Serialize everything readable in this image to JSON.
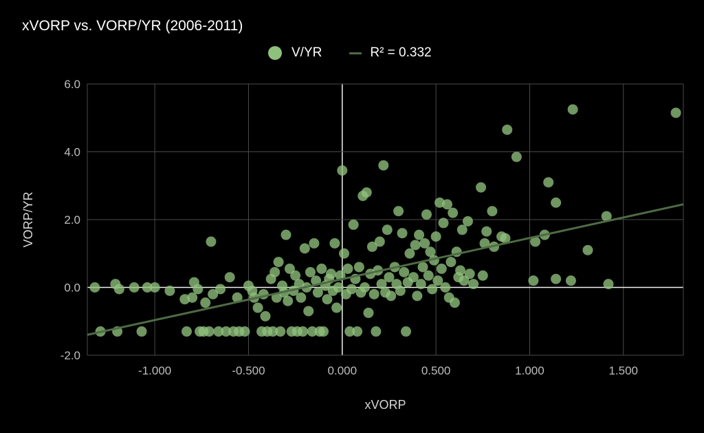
{
  "chart_data": {
    "type": "scatter",
    "title": "xVORP vs. VORP/YR (2006-2011)",
    "xlabel": "xVORP",
    "ylabel": "VORP/YR",
    "xlim": [
      -1.36,
      1.82
    ],
    "ylim": [
      -2.0,
      6.0
    ],
    "x_ticks": [
      -1.0,
      -0.5,
      0.0,
      0.5,
      1.0,
      1.5
    ],
    "x_tick_labels": [
      "-1.000",
      "-0.500",
      "0.000",
      "0.500",
      "1.000",
      "1.500"
    ],
    "y_ticks": [
      -2.0,
      0.0,
      2.0,
      4.0,
      6.0
    ],
    "y_tick_labels": [
      "-2.0",
      "0.0",
      "2.0",
      "4.0",
      "6.0"
    ],
    "grid": true,
    "legend_position": "top",
    "series": [
      {
        "name": "V/YR",
        "color": "#8fc07c",
        "points": [
          [
            -1.32,
            0.0
          ],
          [
            -1.29,
            -1.3
          ],
          [
            -1.21,
            0.1
          ],
          [
            -1.2,
            -1.3
          ],
          [
            -1.19,
            -0.05
          ],
          [
            -1.11,
            0.0
          ],
          [
            -1.07,
            -1.3
          ],
          [
            -1.04,
            0.0
          ],
          [
            -1.0,
            0.0
          ],
          [
            -0.92,
            -0.1
          ],
          [
            -0.84,
            -0.35
          ],
          [
            -0.83,
            -1.3
          ],
          [
            -0.8,
            -0.3
          ],
          [
            -0.79,
            0.15
          ],
          [
            -0.77,
            -0.05
          ],
          [
            -0.76,
            -1.3
          ],
          [
            -0.74,
            -1.3
          ],
          [
            -0.73,
            -0.45
          ],
          [
            -0.71,
            -1.3
          ],
          [
            -0.7,
            1.35
          ],
          [
            -0.69,
            -0.2
          ],
          [
            -0.66,
            -1.3
          ],
          [
            -0.65,
            -0.05
          ],
          [
            -0.62,
            -1.3
          ],
          [
            -0.6,
            0.3
          ],
          [
            -0.58,
            -1.3
          ],
          [
            -0.56,
            -0.3
          ],
          [
            -0.55,
            -1.3
          ],
          [
            -0.52,
            -1.3
          ],
          [
            -0.5,
            0.05
          ],
          [
            -0.48,
            -0.1
          ],
          [
            -0.47,
            -0.3
          ],
          [
            -0.45,
            -0.6
          ],
          [
            -0.43,
            -1.3
          ],
          [
            -0.42,
            -0.2
          ],
          [
            -0.41,
            -0.85
          ],
          [
            -0.4,
            -1.3
          ],
          [
            -0.38,
            0.25
          ],
          [
            -0.37,
            -1.3
          ],
          [
            -0.36,
            0.45
          ],
          [
            -0.35,
            -0.3
          ],
          [
            -0.34,
            0.75
          ],
          [
            -0.33,
            -1.3
          ],
          [
            -0.32,
            0.05
          ],
          [
            -0.31,
            -0.15
          ],
          [
            -0.3,
            1.55
          ],
          [
            -0.29,
            -0.4
          ],
          [
            -0.28,
            0.55
          ],
          [
            -0.27,
            -1.3
          ],
          [
            -0.26,
            -0.1
          ],
          [
            -0.25,
            0.35
          ],
          [
            -0.24,
            -1.3
          ],
          [
            -0.23,
            0.1
          ],
          [
            -0.22,
            -0.3
          ],
          [
            -0.21,
            -1.3
          ],
          [
            -0.2,
            1.15
          ],
          [
            -0.19,
            0.0
          ],
          [
            -0.18,
            -0.7
          ],
          [
            -0.17,
            0.45
          ],
          [
            -0.16,
            -1.3
          ],
          [
            -0.15,
            1.3
          ],
          [
            -0.14,
            0.2
          ],
          [
            -0.13,
            -0.15
          ],
          [
            -0.12,
            -1.3
          ],
          [
            -0.11,
            0.55
          ],
          [
            -0.1,
            -1.3
          ],
          [
            -0.09,
            0.05
          ],
          [
            -0.08,
            -0.35
          ],
          [
            -0.07,
            0.25
          ],
          [
            -0.06,
            0.4
          ],
          [
            -0.05,
            -0.1
          ],
          [
            -0.04,
            1.3
          ],
          [
            -0.03,
            -0.6
          ],
          [
            -0.02,
            0.0
          ],
          [
            -0.01,
            0.35
          ],
          [
            0.0,
            3.45
          ],
          [
            0.01,
            1.0
          ],
          [
            0.02,
            -0.2
          ],
          [
            0.03,
            0.55
          ],
          [
            0.04,
            -1.3
          ],
          [
            0.05,
            -0.05
          ],
          [
            0.06,
            1.85
          ],
          [
            0.07,
            0.25
          ],
          [
            0.08,
            -1.3
          ],
          [
            0.09,
            0.6
          ],
          [
            0.1,
            -0.15
          ],
          [
            0.11,
            2.7
          ],
          [
            0.12,
            0.0
          ],
          [
            0.13,
            2.8
          ],
          [
            0.14,
            -0.75
          ],
          [
            0.15,
            0.4
          ],
          [
            0.16,
            1.2
          ],
          [
            0.17,
            -0.2
          ],
          [
            0.18,
            -1.3
          ],
          [
            0.19,
            0.5
          ],
          [
            0.2,
            1.35
          ],
          [
            0.21,
            0.1
          ],
          [
            0.22,
            3.6
          ],
          [
            0.23,
            -0.15
          ],
          [
            0.24,
            1.7
          ],
          [
            0.25,
            0.3
          ],
          [
            0.26,
            -0.25
          ],
          [
            0.28,
            0.6
          ],
          [
            0.29,
            0.1
          ],
          [
            0.3,
            2.25
          ],
          [
            0.31,
            -0.1
          ],
          [
            0.32,
            1.6
          ],
          [
            0.33,
            0.45
          ],
          [
            0.34,
            -1.3
          ],
          [
            0.35,
            0.15
          ],
          [
            0.36,
            1.0
          ],
          [
            0.38,
            0.3
          ],
          [
            0.39,
            1.25
          ],
          [
            0.4,
            -0.25
          ],
          [
            0.41,
            1.55
          ],
          [
            0.42,
            0.1
          ],
          [
            0.43,
            0.6
          ],
          [
            0.44,
            1.3
          ],
          [
            0.45,
            2.15
          ],
          [
            0.46,
            0.35
          ],
          [
            0.47,
            1.05
          ],
          [
            0.48,
            -0.05
          ],
          [
            0.49,
            0.8
          ],
          [
            0.5,
            1.5
          ],
          [
            0.51,
            0.2
          ],
          [
            0.52,
            2.5
          ],
          [
            0.53,
            0.55
          ],
          [
            0.54,
            1.9
          ],
          [
            0.55,
            0.0
          ],
          [
            0.56,
            2.45
          ],
          [
            0.57,
            -0.3
          ],
          [
            0.58,
            0.75
          ],
          [
            0.59,
            2.2
          ],
          [
            0.6,
            -0.45
          ],
          [
            0.61,
            1.05
          ],
          [
            0.62,
            0.3
          ],
          [
            0.63,
            0.5
          ],
          [
            0.64,
            1.7
          ],
          [
            0.65,
            0.2
          ],
          [
            0.67,
            1.95
          ],
          [
            0.68,
            0.4
          ],
          [
            0.7,
            0.1
          ],
          [
            0.74,
            2.95
          ],
          [
            0.75,
            0.35
          ],
          [
            0.76,
            1.3
          ],
          [
            0.77,
            1.65
          ],
          [
            0.8,
            2.25
          ],
          [
            0.81,
            1.2
          ],
          [
            0.85,
            1.5
          ],
          [
            0.87,
            1.45
          ],
          [
            0.88,
            4.65
          ],
          [
            0.93,
            3.85
          ],
          [
            1.02,
            0.2
          ],
          [
            1.03,
            1.35
          ],
          [
            1.08,
            1.55
          ],
          [
            1.1,
            3.1
          ],
          [
            1.14,
            2.5
          ],
          [
            1.14,
            0.25
          ],
          [
            1.22,
            0.2
          ],
          [
            1.23,
            5.25
          ],
          [
            1.31,
            1.1
          ],
          [
            1.41,
            2.1
          ],
          [
            1.42,
            0.1
          ],
          [
            1.78,
            5.15
          ]
        ]
      },
      {
        "name": "R² = 0.332",
        "type": "trendline",
        "color": "#4e6b44",
        "x": [
          -1.36,
          1.82
        ],
        "y": [
          -1.4,
          2.45
        ]
      }
    ]
  },
  "legend": {
    "scatter_label": "V/YR",
    "trend_label": "R² = 0.332"
  }
}
